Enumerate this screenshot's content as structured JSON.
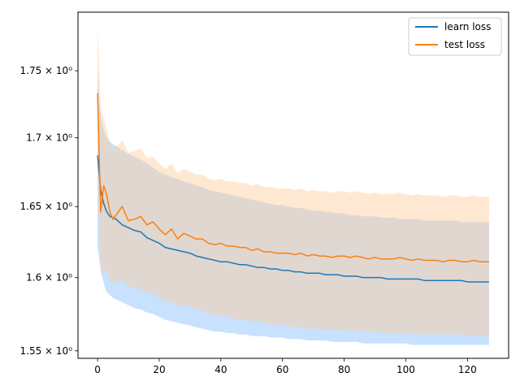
{
  "chart_data": {
    "type": "line",
    "title": "",
    "xlabel": "",
    "ylabel": "",
    "yscale": "log",
    "xlim": [
      -6.35,
      133.35
    ],
    "ylim": [
      1.545,
      1.795
    ],
    "grid": false,
    "legend_position": "top-right",
    "xticks": [
      0,
      20,
      40,
      60,
      80,
      100,
      120
    ],
    "yticks": [
      {
        "value": 1.55,
        "label": "1.55 × 10⁰"
      },
      {
        "value": 1.6,
        "label": "1.6 × 10⁰"
      },
      {
        "value": 1.65,
        "label": "1.65 × 10⁰"
      },
      {
        "value": 1.7,
        "label": "1.7 × 10⁰"
      },
      {
        "value": 1.75,
        "label": "1.75 × 10⁰"
      }
    ],
    "x": [
      0,
      1,
      2,
      3,
      4,
      5,
      6,
      8,
      10,
      12,
      14,
      16,
      18,
      20,
      22,
      24,
      26,
      28,
      30,
      32,
      34,
      36,
      38,
      40,
      42,
      44,
      46,
      48,
      50,
      52,
      54,
      56,
      58,
      60,
      62,
      64,
      66,
      68,
      70,
      72,
      74,
      76,
      78,
      80,
      82,
      84,
      86,
      88,
      90,
      92,
      94,
      96,
      98,
      100,
      102,
      104,
      106,
      108,
      110,
      112,
      114,
      116,
      118,
      120,
      122,
      124,
      126,
      127
    ],
    "series": [
      {
        "name": "learn loss",
        "color": "#1f77b4",
        "band_color": "#99c9ff",
        "values": [
          1.687,
          1.662,
          1.652,
          1.646,
          1.643,
          1.642,
          1.641,
          1.637,
          1.635,
          1.633,
          1.632,
          1.628,
          1.626,
          1.624,
          1.621,
          1.62,
          1.619,
          1.618,
          1.617,
          1.615,
          1.614,
          1.613,
          1.612,
          1.611,
          1.611,
          1.61,
          1.609,
          1.609,
          1.608,
          1.607,
          1.607,
          1.606,
          1.606,
          1.605,
          1.605,
          1.604,
          1.604,
          1.603,
          1.603,
          1.603,
          1.602,
          1.602,
          1.602,
          1.601,
          1.601,
          1.601,
          1.6,
          1.6,
          1.6,
          1.6,
          1.599,
          1.599,
          1.599,
          1.599,
          1.599,
          1.599,
          1.598,
          1.598,
          1.598,
          1.598,
          1.598,
          1.598,
          1.598,
          1.597,
          1.597,
          1.597,
          1.597,
          1.597
        ],
        "lower": [
          1.622,
          1.605,
          1.596,
          1.59,
          1.588,
          1.586,
          1.585,
          1.583,
          1.581,
          1.579,
          1.578,
          1.576,
          1.575,
          1.573,
          1.571,
          1.57,
          1.569,
          1.568,
          1.567,
          1.566,
          1.565,
          1.564,
          1.563,
          1.563,
          1.562,
          1.562,
          1.561,
          1.561,
          1.56,
          1.56,
          1.56,
          1.559,
          1.559,
          1.559,
          1.558,
          1.558,
          1.558,
          1.557,
          1.557,
          1.557,
          1.557,
          1.556,
          1.556,
          1.556,
          1.556,
          1.556,
          1.555,
          1.555,
          1.555,
          1.555,
          1.555,
          1.555,
          1.555,
          1.555,
          1.554,
          1.554,
          1.554,
          1.554,
          1.554,
          1.554,
          1.554,
          1.554,
          1.554,
          1.554,
          1.554,
          1.554,
          1.554,
          1.554
        ],
        "upper": [
          1.75,
          1.715,
          1.705,
          1.7,
          1.697,
          1.695,
          1.694,
          1.691,
          1.688,
          1.686,
          1.684,
          1.681,
          1.678,
          1.675,
          1.673,
          1.671,
          1.67,
          1.668,
          1.667,
          1.665,
          1.664,
          1.662,
          1.661,
          1.66,
          1.659,
          1.658,
          1.657,
          1.656,
          1.655,
          1.654,
          1.653,
          1.652,
          1.651,
          1.651,
          1.65,
          1.649,
          1.649,
          1.648,
          1.647,
          1.647,
          1.646,
          1.646,
          1.645,
          1.645,
          1.644,
          1.644,
          1.643,
          1.643,
          1.643,
          1.642,
          1.642,
          1.642,
          1.641,
          1.641,
          1.641,
          1.641,
          1.64,
          1.64,
          1.64,
          1.64,
          1.64,
          1.64,
          1.639,
          1.639,
          1.639,
          1.639,
          1.639,
          1.639
        ]
      },
      {
        "name": "test loss",
        "color": "#ff7f0e",
        "band_color": "#ffcc99",
        "values": [
          1.733,
          1.646,
          1.665,
          1.658,
          1.646,
          1.641,
          1.644,
          1.65,
          1.64,
          1.641,
          1.643,
          1.637,
          1.639,
          1.634,
          1.63,
          1.634,
          1.627,
          1.631,
          1.629,
          1.627,
          1.627,
          1.624,
          1.623,
          1.624,
          1.622,
          1.622,
          1.621,
          1.621,
          1.619,
          1.62,
          1.618,
          1.618,
          1.617,
          1.617,
          1.617,
          1.616,
          1.617,
          1.615,
          1.616,
          1.615,
          1.615,
          1.614,
          1.615,
          1.615,
          1.614,
          1.615,
          1.614,
          1.613,
          1.614,
          1.613,
          1.613,
          1.613,
          1.614,
          1.613,
          1.612,
          1.613,
          1.612,
          1.612,
          1.612,
          1.611,
          1.612,
          1.612,
          1.611,
          1.611,
          1.612,
          1.611,
          1.611,
          1.611
        ],
        "lower": [
          1.665,
          1.603,
          1.603,
          1.605,
          1.598,
          1.596,
          1.597,
          1.598,
          1.594,
          1.593,
          1.592,
          1.59,
          1.589,
          1.586,
          1.583,
          1.584,
          1.58,
          1.581,
          1.58,
          1.578,
          1.577,
          1.576,
          1.574,
          1.574,
          1.573,
          1.572,
          1.571,
          1.571,
          1.57,
          1.57,
          1.569,
          1.568,
          1.568,
          1.567,
          1.567,
          1.566,
          1.566,
          1.565,
          1.565,
          1.565,
          1.564,
          1.564,
          1.564,
          1.564,
          1.563,
          1.563,
          1.563,
          1.563,
          1.563,
          1.562,
          1.562,
          1.562,
          1.562,
          1.562,
          1.561,
          1.561,
          1.561,
          1.561,
          1.561,
          1.561,
          1.561,
          1.561,
          1.561,
          1.56,
          1.56,
          1.56,
          1.56,
          1.56
        ],
        "upper": [
          1.783,
          1.722,
          1.715,
          1.705,
          1.696,
          1.692,
          1.693,
          1.698,
          1.689,
          1.69,
          1.692,
          1.685,
          1.686,
          1.681,
          1.677,
          1.681,
          1.674,
          1.677,
          1.675,
          1.673,
          1.673,
          1.67,
          1.669,
          1.67,
          1.668,
          1.668,
          1.667,
          1.667,
          1.665,
          1.666,
          1.664,
          1.664,
          1.663,
          1.663,
          1.663,
          1.662,
          1.663,
          1.661,
          1.662,
          1.661,
          1.661,
          1.66,
          1.661,
          1.661,
          1.66,
          1.661,
          1.66,
          1.659,
          1.66,
          1.659,
          1.659,
          1.659,
          1.66,
          1.659,
          1.658,
          1.659,
          1.658,
          1.658,
          1.658,
          1.657,
          1.658,
          1.658,
          1.657,
          1.657,
          1.658,
          1.657,
          1.657,
          1.657
        ]
      }
    ]
  }
}
